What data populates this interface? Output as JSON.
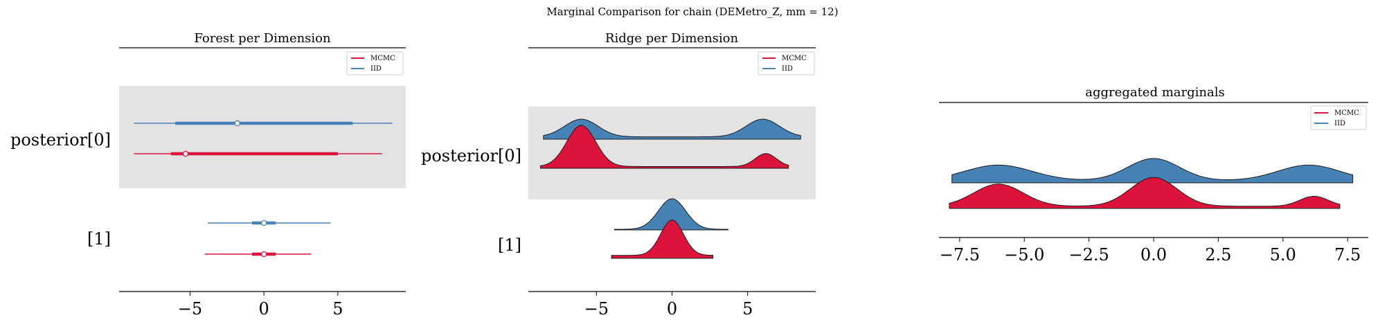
{
  "figure": {
    "suptitle": "Marginal Comparison for chain (DEMetro_Z, mm = 12)",
    "colors": {
      "MCMC": "#dc143c",
      "IID": "#4682b4",
      "band": "#e3e3e3"
    }
  },
  "chart_data": [
    {
      "type": "forest",
      "title": "Forest per Dimension",
      "legend": [
        "MCMC",
        "IID"
      ],
      "legend_position": "top-right",
      "xticks": [
        -5,
        0,
        5
      ],
      "xlim": [
        -9.8,
        9.6
      ],
      "row_labels": [
        "posterior[0]",
        "[1]"
      ],
      "rows": [
        {
          "label": "posterior[0]",
          "IID": {
            "hdi94": [
              -8.8,
              8.7
            ],
            "hdi50": [
              -6.0,
              6.0
            ],
            "point": -1.8
          },
          "MCMC": {
            "hdi94": [
              -8.8,
              8.0
            ],
            "hdi50": [
              -6.3,
              5.0
            ],
            "point": -5.3
          }
        },
        {
          "label": "[1]",
          "IID": {
            "hdi94": [
              -3.8,
              4.5
            ],
            "hdi50": [
              -0.8,
              0.8
            ],
            "point": 0.0
          },
          "MCMC": {
            "hdi94": [
              -4.0,
              3.2
            ],
            "hdi50": [
              -0.8,
              0.8
            ],
            "point": 0.0
          }
        }
      ]
    },
    {
      "type": "ridge",
      "title": "Ridge per Dimension",
      "legend": [
        "MCMC",
        "IID"
      ],
      "legend_position": "top-right",
      "xticks": [
        -5,
        0,
        5
      ],
      "xlim": [
        -9.5,
        9.5
      ],
      "row_labels": [
        "posterior[0]",
        "[1]"
      ],
      "rows": [
        {
          "label": "posterior[0]",
          "IID": {
            "range": [
              -8.5,
              8.5
            ],
            "modes": [
              {
                "mu": -6.0,
                "sigma": 1.1,
                "h": 0.3
              },
              {
                "mu": 6.0,
                "sigma": 1.1,
                "h": 0.3
              }
            ],
            "floor": 0.04
          },
          "MCMC": {
            "range": [
              -8.7,
              7.7
            ],
            "modes": [
              {
                "mu": -6.0,
                "sigma": 0.95,
                "h": 0.7
              },
              {
                "mu": 6.2,
                "sigma": 0.7,
                "h": 0.22
              }
            ],
            "floor": 0.03
          }
        },
        {
          "label": "[1]",
          "IID": {
            "range": [
              -3.8,
              3.7
            ],
            "modes": [
              {
                "mu": 0.0,
                "sigma": 0.9,
                "h": 0.52
              }
            ],
            "floor": 0.01
          },
          "MCMC": {
            "range": [
              -4.0,
              2.7
            ],
            "modes": [
              {
                "mu": 0.0,
                "sigma": 0.75,
                "h": 0.6
              }
            ],
            "floor": 0.05
          }
        }
      ]
    },
    {
      "type": "ridge",
      "title": "aggregated marginals",
      "legend": [
        "MCMC",
        "IID"
      ],
      "legend_position": "top-right",
      "xticks": [
        -7.5,
        -5.0,
        -2.5,
        0.0,
        2.5,
        5.0,
        7.5
      ],
      "xtick_labels": [
        "−7.5",
        "−5.0",
        "−2.5",
        "0.0",
        "2.5",
        "5.0",
        "7.5"
      ],
      "xlim": [
        -8.3,
        8.3
      ],
      "rows": [
        {
          "label": "",
          "IID": {
            "range": [
              -7.8,
              7.7
            ],
            "modes": [
              {
                "mu": -6.0,
                "sigma": 1.3,
                "h": 0.28
              },
              {
                "mu": 0.0,
                "sigma": 1.0,
                "h": 0.4
              },
              {
                "mu": 6.0,
                "sigma": 1.2,
                "h": 0.28
              }
            ],
            "floor": 0.04
          },
          "MCMC": {
            "range": [
              -7.9,
              7.2
            ],
            "modes": [
              {
                "mu": -6.0,
                "sigma": 0.95,
                "h": 0.4
              },
              {
                "mu": 0.0,
                "sigma": 0.9,
                "h": 0.52
              },
              {
                "mu": 6.2,
                "sigma": 0.55,
                "h": 0.18
              }
            ],
            "floor": 0.04
          }
        }
      ]
    }
  ]
}
